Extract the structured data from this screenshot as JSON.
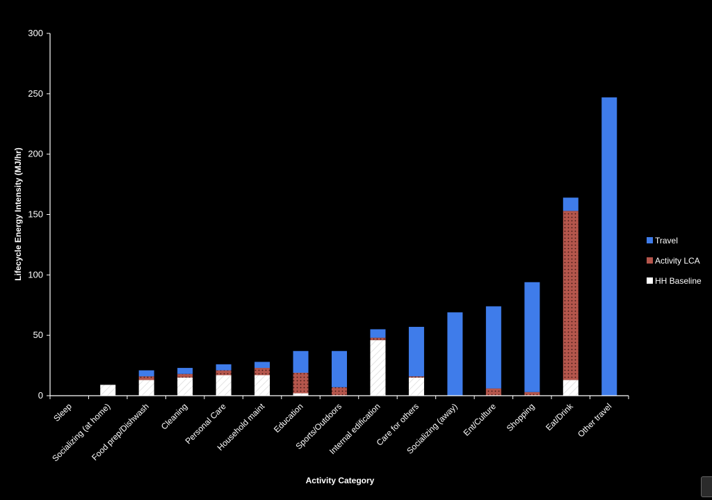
{
  "chart_data": {
    "type": "bar",
    "stacked": true,
    "title": "",
    "xlabel": "Activity Category",
    "ylabel": "Lifecycle Energy Intensity (MJ/hr)",
    "ylim": [
      0,
      300
    ],
    "yticks": [
      0,
      50,
      100,
      150,
      200,
      250,
      300
    ],
    "categories": [
      "Sleep",
      "Socializing (at home)",
      "Food prep/Dishwash",
      "Cleaning",
      "Personal Care",
      "Household maint",
      "Education",
      "Sports/Outdoors",
      "Internal edification",
      "Care for others",
      "Socializing (away)",
      "Ent/Culture",
      "Shopping",
      "Eat/Drink",
      "Other travel"
    ],
    "series": [
      {
        "name": "HH Baseline",
        "color": "#ffffff",
        "values": [
          0,
          9,
          13,
          15,
          17,
          17,
          2,
          0,
          46,
          15,
          0,
          0,
          0,
          13,
          0
        ]
      },
      {
        "name": "Activity LCA",
        "color": "#b5564c",
        "values": [
          0,
          0,
          3,
          3,
          4,
          6,
          17,
          7,
          2,
          1,
          0,
          6,
          3,
          140,
          0
        ]
      },
      {
        "name": "Travel",
        "color": "#3f7cea",
        "values": [
          0,
          0,
          5,
          5,
          5,
          5,
          18,
          30,
          7,
          41,
          69,
          68,
          91,
          11,
          247
        ]
      }
    ],
    "legend_order": [
      "Travel",
      "Activity LCA",
      "HH Baseline"
    ],
    "legend_position": "right",
    "grid": false
  }
}
